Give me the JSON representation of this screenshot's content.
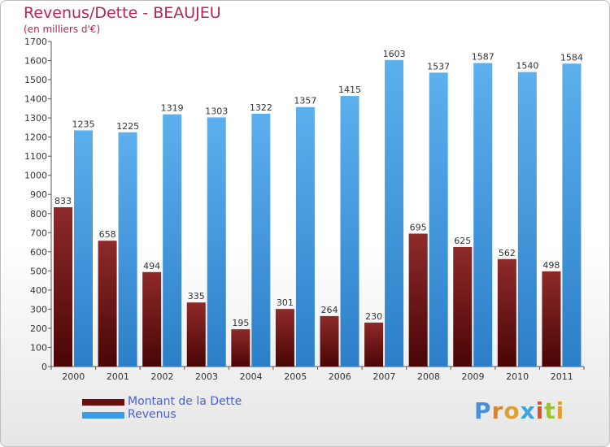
{
  "header": {
    "title": "Revenus/Dette - BEAUJEU",
    "subtitle": "(en milliers d'€)"
  },
  "chart_data": {
    "type": "bar",
    "title": "Revenus/Dette - BEAUJEU",
    "subtitle": "(en milliers d'€)",
    "categories": [
      "2000",
      "2001",
      "2002",
      "2003",
      "2004",
      "2005",
      "2006",
      "2007",
      "2008",
      "2009",
      "2010",
      "2011"
    ],
    "series": [
      {
        "name": "Montant de la Dette",
        "color": "#7a1e1e",
        "values": [
          833,
          658,
          494,
          335,
          195,
          301,
          264,
          230,
          695,
          625,
          562,
          498
        ]
      },
      {
        "name": "Revenus",
        "color": "#3a8fd6",
        "values": [
          1235,
          1225,
          1319,
          1303,
          1322,
          1357,
          1415,
          1603,
          1537,
          1587,
          1540,
          1584
        ]
      }
    ],
    "ylim": [
      0,
      1700
    ],
    "yticks": [
      0,
      100,
      200,
      300,
      400,
      500,
      600,
      700,
      800,
      900,
      1000,
      1100,
      1200,
      1300,
      1400,
      1500,
      1600,
      1700
    ],
    "grid": false,
    "legend_position": "bottom-left"
  },
  "legend": {
    "items": [
      {
        "label": "Montant de la Dette",
        "color": "#6b0f0f",
        "text_color": "#4a5de0"
      },
      {
        "label": "Revenus",
        "color": "#3a9ae6",
        "text_color": "#4a5de0"
      }
    ]
  },
  "logo": {
    "text": "Proxiti",
    "letters": [
      "P",
      "r",
      "o",
      "x",
      "i",
      "t",
      "i"
    ],
    "colors": [
      "#4a8fd9",
      "#e0842a",
      "#e0a030",
      "#3da4e0",
      "#e05030",
      "#9cc23a",
      "#e0a030"
    ]
  }
}
